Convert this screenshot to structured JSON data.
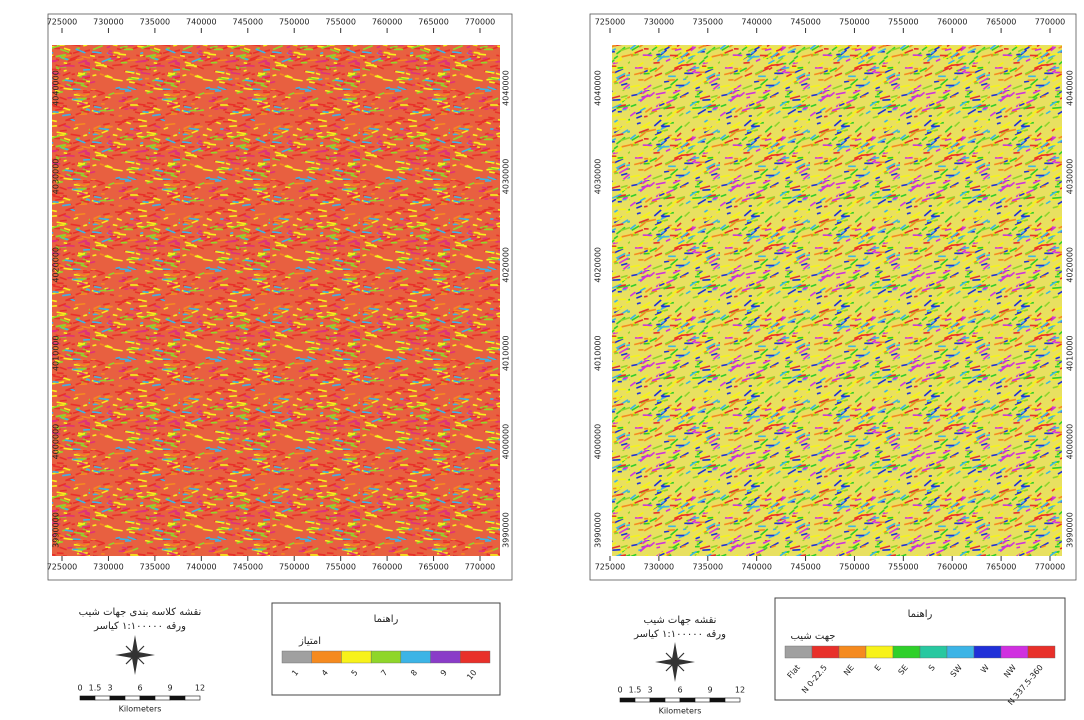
{
  "maps": [
    {
      "x_ticks": [
        "725000",
        "730000",
        "735000",
        "740000",
        "745000",
        "750000",
        "755000",
        "760000",
        "765000",
        "770000"
      ],
      "y_ticks": [
        "4040000",
        "4030000",
        "4020000",
        "4010000",
        "4000000",
        "3990000"
      ],
      "title": "نقشه کلاسه بندی جهات شیب",
      "subtitle": "ورقه ۱:۱۰۰۰۰۰ کیاسر",
      "legend_title": "راهنما",
      "legend_subtitle": "امتیاز",
      "legend_labels": [
        "1",
        "4",
        "5",
        "7",
        "8",
        "9",
        "10"
      ],
      "legend_colors": [
        "#a0a0a0",
        "#f58a1f",
        "#f7f21a",
        "#8fd62a",
        "#3cb4e6",
        "#8a3cc8",
        "#e8302a"
      ],
      "scale_labels": [
        "0",
        "1.5",
        "3",
        "6",
        "9",
        "12"
      ],
      "scale_unit": "Kilometers"
    },
    {
      "x_ticks": [
        "725000",
        "730000",
        "735000",
        "740000",
        "745000",
        "750000",
        "755000",
        "760000",
        "765000",
        "770000"
      ],
      "y_ticks": [
        "4040000",
        "4030000",
        "4020000",
        "4010000",
        "4000000",
        "3990000"
      ],
      "title": "نقشه جهات شیب",
      "subtitle": "ورقه ۱:۱۰۰۰۰۰ کیاسر",
      "legend_title": "راهنما",
      "legend_subtitle": "جهت شیب",
      "legend_labels": [
        "Flat",
        "N 0-22.5",
        "NE",
        "E",
        "SE",
        "S",
        "SW",
        "W",
        "NW",
        "N 337.5-360"
      ],
      "legend_colors": [
        "#a0a0a0",
        "#e8302a",
        "#f58a1f",
        "#f7f21a",
        "#2fd02a",
        "#28c8a0",
        "#3cb4e6",
        "#2030d8",
        "#d030e0",
        "#e8302a"
      ],
      "scale_labels": [
        "0",
        "1.5",
        "3",
        "6",
        "9",
        "12"
      ],
      "scale_unit": "Kilometers"
    }
  ]
}
